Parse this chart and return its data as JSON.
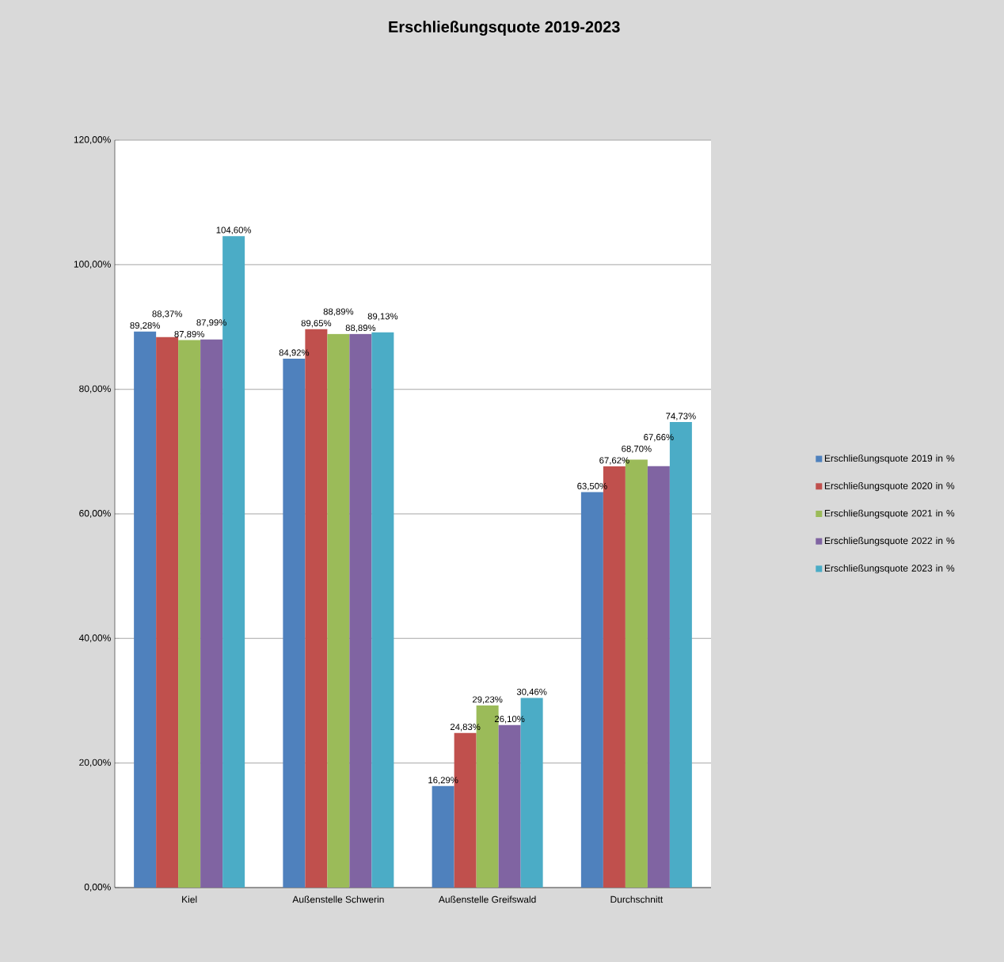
{
  "chart_data": {
    "type": "bar",
    "title": "Erschließungsquote 2019-2023",
    "categories": [
      "Kiel",
      "Außenstelle Schwerin",
      "Außenstelle Greifswald",
      "Durchschnitt"
    ],
    "series": [
      {
        "name": "Erschließungsquote 2019 in %",
        "color": "#4f81bd",
        "values": [
          89.28,
          84.92,
          16.29,
          63.5
        ],
        "value_labels": [
          "89,28%",
          "84,92%",
          "16,29%",
          "63,50%"
        ]
      },
      {
        "name": "Erschließungsquote 2020 in %",
        "color": "#c0504d",
        "values": [
          88.37,
          89.65,
          24.83,
          67.62
        ],
        "value_labels": [
          "88,37%",
          "89,65%",
          "24,83%",
          "67,62%"
        ]
      },
      {
        "name": "Erschließungsquote 2021 in %",
        "color": "#9bbb59",
        "values": [
          87.89,
          88.89,
          29.23,
          68.7
        ],
        "value_labels": [
          "87,89%",
          "88,89%",
          "29,23%",
          "68,70%"
        ]
      },
      {
        "name": "Erschließungsquote 2022 in %",
        "color": "#8064a2",
        "values": [
          87.99,
          88.89,
          26.1,
          67.66
        ],
        "value_labels": [
          "87,99%",
          "88,89%",
          "26,10%",
          "67,66%"
        ]
      },
      {
        "name": "Erschließungsquote 2023 in %",
        "color": "#4bacc6",
        "values": [
          104.6,
          89.13,
          30.46,
          74.73
        ],
        "value_labels": [
          "104,60%",
          "89,13%",
          "30,46%",
          "74,73%"
        ]
      }
    ],
    "ylim": [
      0,
      120
    ],
    "yticks": [
      {
        "value": 0,
        "label": "0,00%"
      },
      {
        "value": 20,
        "label": "20,00%"
      },
      {
        "value": 40,
        "label": "40,00%"
      },
      {
        "value": 60,
        "label": "60,00%"
      },
      {
        "value": 80,
        "label": "80,00%"
      },
      {
        "value": 100,
        "label": "100,00%"
      },
      {
        "value": 120,
        "label": "120,00%"
      }
    ],
    "grid": "y",
    "legend": "right"
  }
}
